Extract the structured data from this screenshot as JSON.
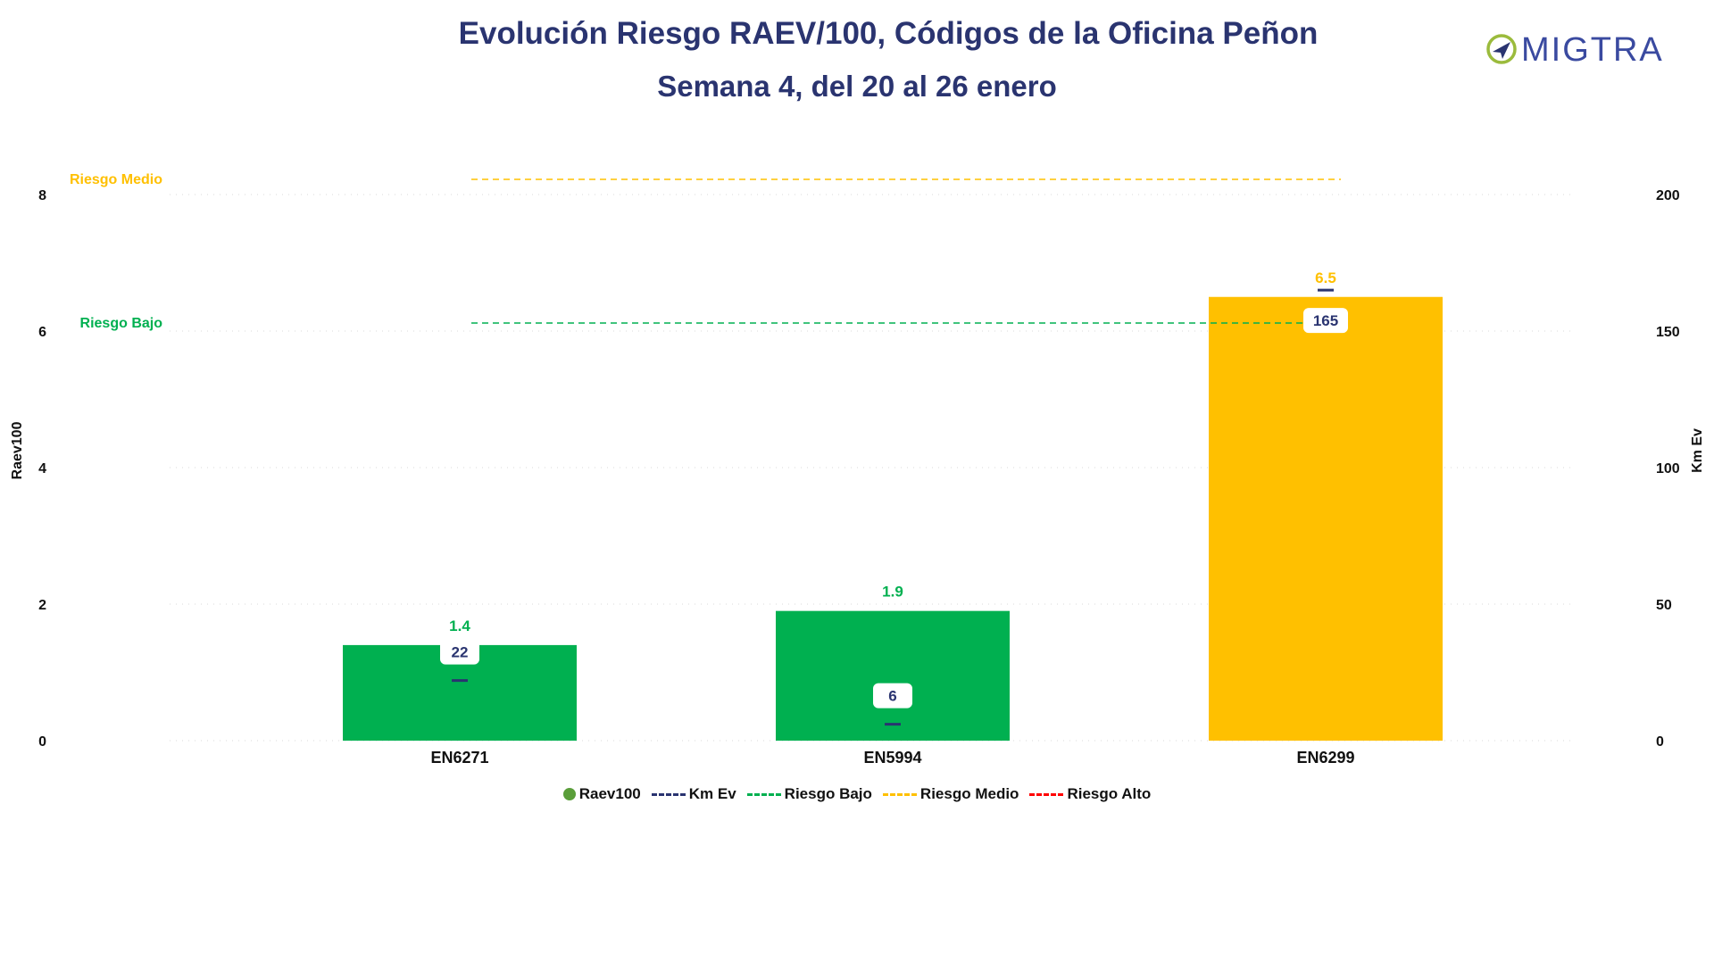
{
  "title": "Evolución Riesgo RAEV/100, Códigos de la Oficina Peñon",
  "subtitle": "Semana 4, del 20 al 26 enero",
  "logo_text": "MIGTRA",
  "colors": {
    "title": "#2a3470",
    "bar_green": "#00b050",
    "bar_yellow": "#ffc000",
    "km_line": "#2a3470",
    "riesgo_bajo": "#00b050",
    "riesgo_medio": "#ffc000",
    "riesgo_alto": "#ff0000",
    "legend_raev": "#5a9e3a",
    "logo_green": "#9bbb3c",
    "logo_blue": "#3a4aa0"
  },
  "legend": [
    {
      "label": "Raev100",
      "symbol": "dot",
      "color": "#5a9e3a"
    },
    {
      "label": "Km Ev",
      "symbol": "dash",
      "color": "#2a3470"
    },
    {
      "label": "Riesgo Bajo",
      "symbol": "dash",
      "color": "#00b050"
    },
    {
      "label": "Riesgo Medio",
      "symbol": "dash",
      "color": "#ffc000"
    },
    {
      "label": "Riesgo Alto",
      "symbol": "dash",
      "color": "#ff0000"
    }
  ],
  "chart_data": {
    "type": "bar",
    "categories": [
      "EN6271",
      "EN5994",
      "EN6299"
    ],
    "series": [
      {
        "name": "Raev100",
        "axis": "left",
        "values": [
          1.4,
          1.9,
          6.5
        ],
        "value_labels": [
          "1.4",
          "1.9",
          "6.5"
        ],
        "colors": [
          "#00b050",
          "#00b050",
          "#ffc000"
        ]
      },
      {
        "name": "Km Ev",
        "axis": "right",
        "values": [
          22,
          6,
          165
        ],
        "value_labels": [
          "22",
          "6",
          "165"
        ]
      }
    ],
    "reference_lines": [
      {
        "name": "Riesgo Bajo",
        "label": "Riesgo Bajo",
        "value": 6,
        "color": "#00b050"
      },
      {
        "name": "Riesgo Medio",
        "label": "Riesgo Medio",
        "value": 8,
        "color": "#ffc000"
      }
    ],
    "ylabel": "Raev100",
    "y2label": "Km Ev",
    "ylim": [
      0,
      8
    ],
    "y2lim": [
      0,
      200
    ],
    "yticks": [
      0,
      2,
      4,
      6,
      8
    ],
    "y2ticks": [
      0,
      50,
      100,
      150,
      200
    ],
    "grid": true,
    "legend_position": "bottom"
  }
}
